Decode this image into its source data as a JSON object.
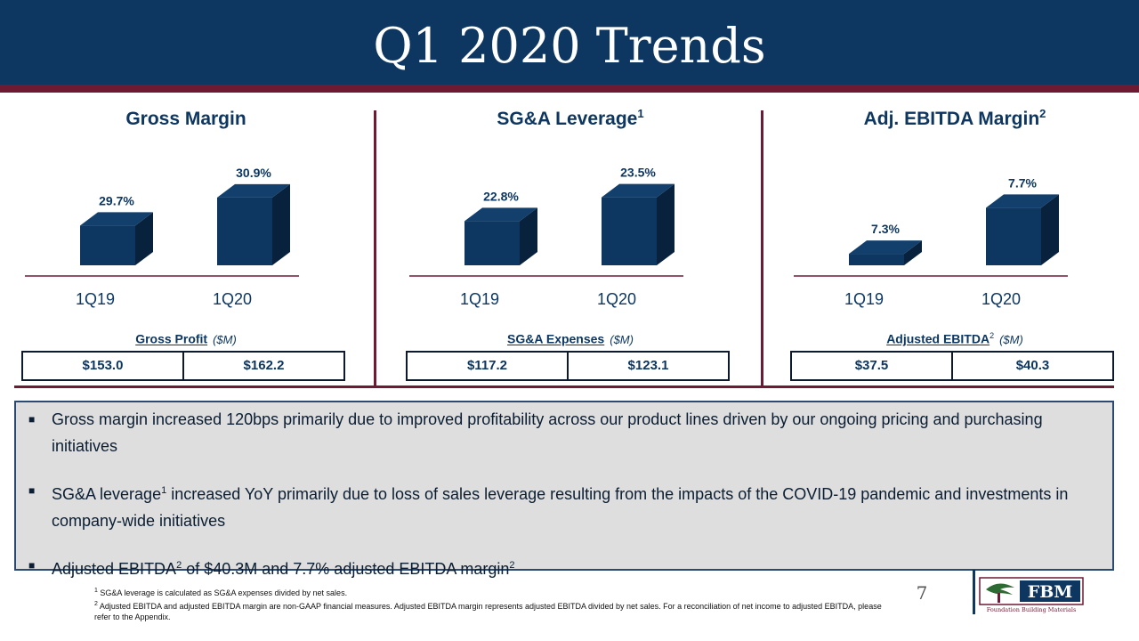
{
  "title": "Q1 2020 Trends",
  "panels": [
    {
      "title": "Gross Margin",
      "title_sup": "",
      "sub_label": "Gross Profit",
      "sub_sup": "",
      "unit": "($M)",
      "table": [
        "$153.0",
        "$162.2"
      ]
    },
    {
      "title": "SG&A Leverage",
      "title_sup": "1",
      "sub_label": "SG&A Expenses",
      "sub_sup": "",
      "unit": "($M)",
      "table": [
        "$117.2",
        "$123.1"
      ]
    },
    {
      "title": "Adj. EBITDA Margin",
      "title_sup": "2",
      "sub_label": "Adjusted EBITDA",
      "sub_sup": "2",
      "unit": "($M)",
      "table": [
        "$37.5",
        "$40.3"
      ]
    }
  ],
  "chart_data": [
    {
      "type": "bar",
      "title": "Gross Margin",
      "categories": [
        "1Q19",
        "1Q20"
      ],
      "values": [
        29.7,
        30.9
      ],
      "labels": [
        "29.7%",
        "30.9%"
      ],
      "ylim": [
        28.0,
        31.2
      ]
    },
    {
      "type": "bar",
      "title": "SG&A Leverage",
      "categories": [
        "1Q19",
        "1Q20"
      ],
      "values": [
        22.8,
        23.5
      ],
      "labels": [
        "22.8%",
        "23.5%"
      ],
      "ylim": [
        21.5,
        23.7
      ]
    },
    {
      "type": "bar",
      "title": "Adj. EBITDA Margin",
      "categories": [
        "1Q19",
        "1Q20"
      ],
      "values": [
        7.3,
        7.7
      ],
      "labels": [
        "7.3%",
        "7.7%"
      ],
      "ylim": [
        7.2,
        7.85
      ]
    }
  ],
  "bullets": [
    {
      "pre": "Gross margin increased 120bps primarily due to improved profitability across our product lines driven by our ongoing pricing and purchasing initiatives",
      "sup": "",
      "post": "",
      "sup2": ""
    },
    {
      "pre": "SG&A leverage",
      "sup": "1",
      "post": " increased YoY primarily due to loss of sales leverage resulting from the impacts of the COVID-19 pandemic and investments in company-wide initiatives",
      "sup2": ""
    },
    {
      "pre": "Adjusted EBITDA",
      "sup": "2",
      "post": " of $40.3M and 7.7% adjusted EBITDA margin",
      "sup2": "2"
    }
  ],
  "footnotes": [
    {
      "sup": "1",
      "text": " SG&A leverage is calculated as SG&A expenses divided by net sales."
    },
    {
      "sup": "2",
      "text": " Adjusted EBITDA and adjusted EBITDA margin are non-GAAP financial measures.  Adjusted EBITDA margin represents adjusted EBITDA divided by net sales. For a reconciliation of net income to adjusted EBITDA, please refer to the Appendix."
    }
  ],
  "page_number": "7",
  "logo": {
    "text": "FBM",
    "tagline": "Foundation Building Materials",
    "colors": {
      "navy": "#0d3761",
      "maroon": "#6e1a33",
      "green": "#2e6b34"
    }
  }
}
